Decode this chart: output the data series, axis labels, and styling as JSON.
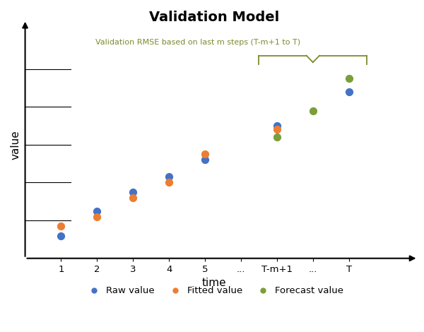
{
  "title": "Validation Model",
  "title_fontsize": 14,
  "xlabel": "time",
  "ylabel": "value",
  "annotation_text": "Validation RMSE based on last m steps (T-m+1 to T)",
  "annotation_color": "#7a8c2e",
  "xtick_labels": [
    "1",
    "2",
    "3",
    "4",
    "5",
    "...",
    "T-m+1",
    "...",
    "T"
  ],
  "xtick_positions": [
    1,
    2,
    3,
    4,
    5,
    6,
    7,
    8,
    9
  ],
  "raw_color": "#4472c4",
  "fitted_color": "#ed7d31",
  "forecast_color": "#7b9e3a",
  "background_color": "#ffffff",
  "raw_values": [
    [
      1,
      1.2
    ],
    [
      2,
      2.5
    ],
    [
      3,
      3.5
    ],
    [
      4,
      4.3
    ],
    [
      5,
      5.2
    ],
    [
      7,
      7.0
    ],
    [
      9,
      8.8
    ]
  ],
  "fitted_values": [
    [
      1,
      1.7
    ],
    [
      2,
      2.2
    ],
    [
      3,
      3.2
    ],
    [
      4,
      4.0
    ],
    [
      5,
      5.5
    ],
    [
      7,
      6.8
    ]
  ],
  "forecast_values": [
    [
      7,
      6.4
    ],
    [
      8,
      7.8
    ],
    [
      9,
      9.5
    ]
  ],
  "dot_size": 50,
  "legend_entries": [
    "Raw value",
    "Fitted value",
    "Forecast value"
  ]
}
